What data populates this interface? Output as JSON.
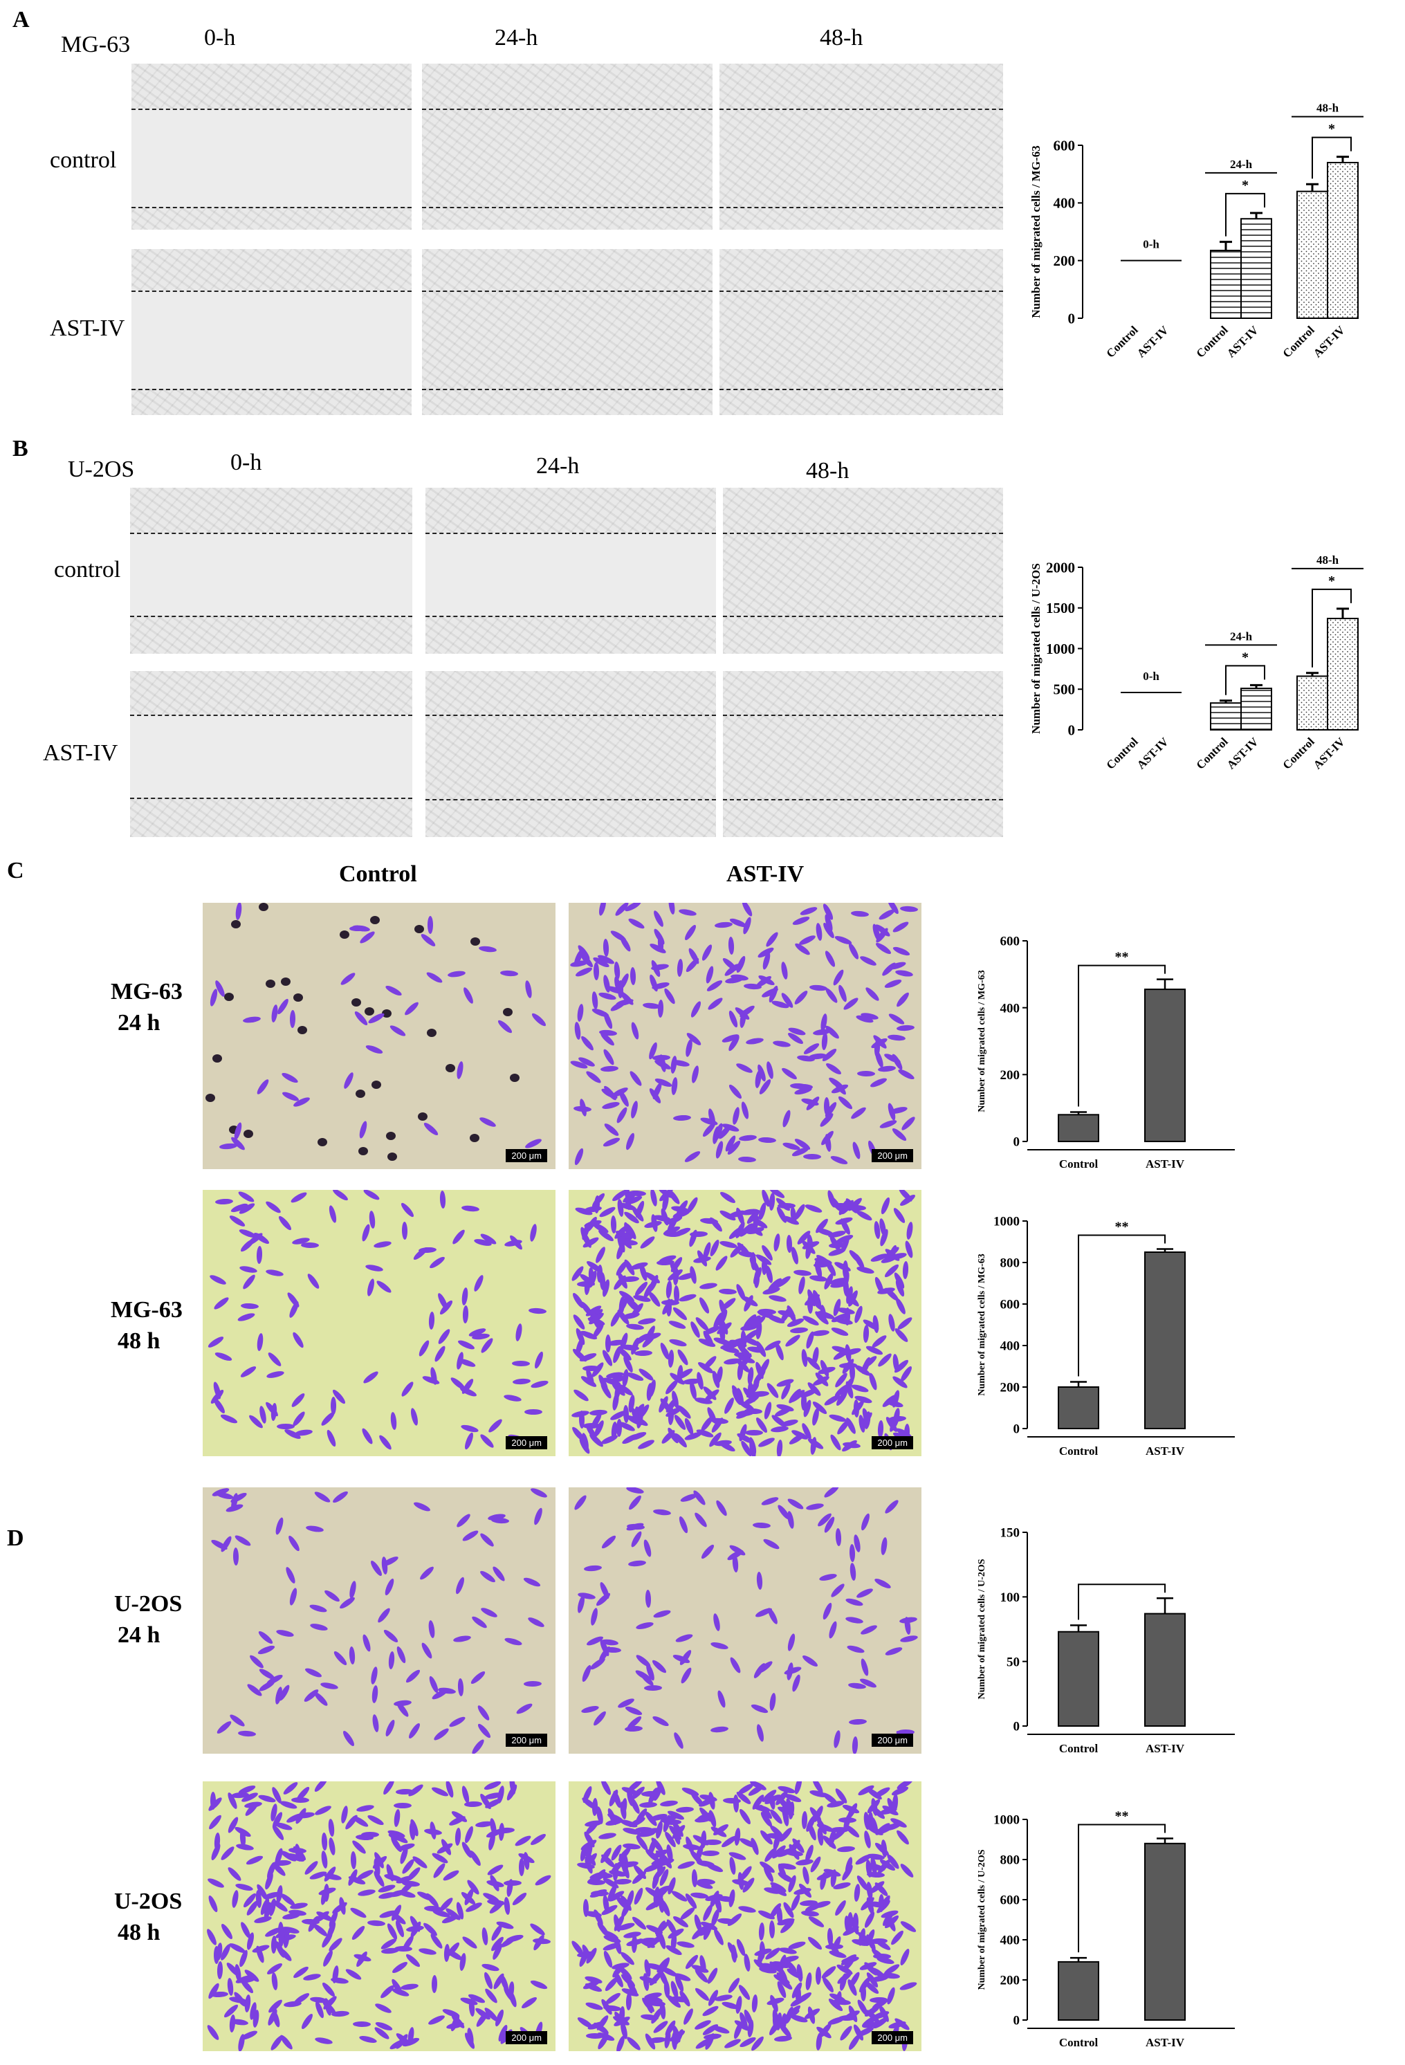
{
  "panels": {
    "A": {
      "letter": "A",
      "cell_line": "MG-63",
      "time_headers": [
        "0-h",
        "24-h",
        "48-h"
      ],
      "row_labels": [
        "control",
        "AST-IV"
      ]
    },
    "B": {
      "letter": "B",
      "cell_line": "U-2OS",
      "time_headers": [
        "0-h",
        "24-h",
        "48-h"
      ],
      "row_labels": [
        "control",
        "AST-IV"
      ]
    },
    "C": {
      "letter": "C",
      "column_headers": [
        "Control",
        "AST-IV"
      ],
      "row_labels": [
        [
          "MG-63",
          "24 h"
        ],
        [
          "MG-63",
          "48 h"
        ]
      ],
      "scale_bar": "200 μm"
    },
    "D": {
      "letter": "D",
      "row_labels": [
        [
          "U-2OS",
          "24 h"
        ],
        [
          "U-2OS",
          "48 h"
        ]
      ],
      "scale_bar": "200 μm"
    }
  },
  "colors": {
    "bar_dark": "#5a5a5a",
    "cell_purple": "#7b3fe0",
    "transwell_bg": "#d9d2b8",
    "transwell_green_bg": "#dfe6a6"
  },
  "chart_data": [
    {
      "id": "A-chart",
      "type": "bar",
      "ylabel": "Number of migrated cells / MG-63",
      "ylim": [
        0,
        600
      ],
      "yticks": [
        0,
        200,
        400,
        600
      ],
      "groups": [
        {
          "label": "0-h",
          "categories": [
            "Control",
            "AST-IV"
          ],
          "values": [
            200,
            200
          ],
          "errors": [
            0,
            0
          ],
          "line_only": true,
          "sig": ""
        },
        {
          "label": "24-h",
          "categories": [
            "Control",
            "AST-IV"
          ],
          "values": [
            235,
            345
          ],
          "errors": [
            30,
            20
          ],
          "pattern": "hlines",
          "sig": "*"
        },
        {
          "label": "48-h",
          "categories": [
            "Control",
            "AST-IV"
          ],
          "values": [
            440,
            540
          ],
          "errors": [
            25,
            20
          ],
          "pattern": "dots",
          "sig": "*"
        }
      ]
    },
    {
      "id": "B-chart",
      "type": "bar",
      "ylabel": "Number of migrated cells / U-2OS",
      "ylim": [
        0,
        2000
      ],
      "yticks": [
        0,
        500,
        1000,
        1500,
        2000
      ],
      "groups": [
        {
          "label": "0-h",
          "categories": [
            "Control",
            "AST-IV"
          ],
          "values": [
            460,
            460
          ],
          "errors": [
            0,
            0
          ],
          "line_only": true,
          "sig": ""
        },
        {
          "label": "24-h",
          "categories": [
            "Control",
            "AST-IV"
          ],
          "values": [
            330,
            510
          ],
          "errors": [
            30,
            40
          ],
          "pattern": "hlines",
          "sig": "*"
        },
        {
          "label": "48-h",
          "categories": [
            "Control",
            "AST-IV"
          ],
          "values": [
            660,
            1370
          ],
          "errors": [
            40,
            120
          ],
          "pattern": "dots",
          "sig": "*"
        }
      ]
    },
    {
      "id": "C1-chart",
      "type": "bar",
      "ylabel": "Number of migrated cells / MG-63",
      "ylim": [
        0,
        600
      ],
      "yticks": [
        0,
        200,
        400,
        600
      ],
      "categories": [
        "Control",
        "AST-IV"
      ],
      "values": [
        80,
        455
      ],
      "errors": [
        8,
        30
      ],
      "sig": "**"
    },
    {
      "id": "C2-chart",
      "type": "bar",
      "ylabel": "Number of migrated cells / MG-63",
      "ylim": [
        0,
        1000
      ],
      "yticks": [
        0,
        200,
        400,
        600,
        800,
        1000
      ],
      "categories": [
        "Control",
        "AST-IV"
      ],
      "values": [
        200,
        850
      ],
      "errors": [
        25,
        15
      ],
      "sig": "**"
    },
    {
      "id": "D1-chart",
      "type": "bar",
      "ylabel": "Number of migrated cells / U-2OS",
      "ylim": [
        0,
        150
      ],
      "yticks": [
        0,
        50,
        100,
        150
      ],
      "categories": [
        "Control",
        "AST-IV"
      ],
      "values": [
        73,
        87
      ],
      "errors": [
        5,
        12
      ],
      "sig": ""
    },
    {
      "id": "D2-chart",
      "type": "bar",
      "ylabel": "Number of migrated cells / U-2OS",
      "ylim": [
        0,
        1000
      ],
      "yticks": [
        0,
        200,
        400,
        600,
        800,
        1000
      ],
      "categories": [
        "Control",
        "AST-IV"
      ],
      "values": [
        290,
        880
      ],
      "errors": [
        20,
        25
      ],
      "sig": "**"
    }
  ]
}
